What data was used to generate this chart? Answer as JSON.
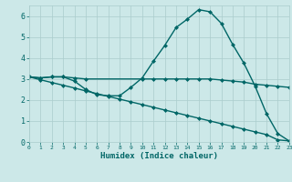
{
  "xlabel": "Humidex (Indice chaleur)",
  "bg_color": "#cce8e8",
  "line_color": "#006666",
  "grid_color": "#aacccc",
  "xlim": [
    0,
    23
  ],
  "ylim": [
    0,
    6.5
  ],
  "xticks": [
    0,
    1,
    2,
    3,
    4,
    5,
    6,
    7,
    8,
    9,
    10,
    11,
    12,
    13,
    14,
    15,
    16,
    17,
    18,
    19,
    20,
    21,
    22,
    23
  ],
  "yticks": [
    0,
    1,
    2,
    3,
    4,
    5,
    6
  ],
  "series1_x": [
    0,
    1,
    2,
    3,
    4,
    5,
    6,
    7,
    8,
    9,
    10,
    11,
    12,
    13,
    14,
    15,
    16,
    17,
    18,
    19,
    20,
    21,
    22,
    23
  ],
  "series1_y": [
    3.1,
    3.05,
    3.1,
    3.1,
    2.9,
    2.5,
    2.25,
    2.2,
    2.2,
    2.6,
    3.05,
    3.85,
    4.6,
    5.45,
    5.85,
    6.3,
    6.2,
    5.65,
    4.65,
    3.75,
    2.65,
    1.35,
    0.4,
    0.05
  ],
  "series2_x": [
    0,
    1,
    2,
    3,
    4,
    5,
    10,
    11,
    12,
    13,
    14,
    15,
    16,
    17,
    18,
    19,
    20,
    21,
    22,
    23
  ],
  "series2_y": [
    3.1,
    3.05,
    3.1,
    3.1,
    3.05,
    3.0,
    3.0,
    3.0,
    3.0,
    3.0,
    3.0,
    3.0,
    3.0,
    2.95,
    2.9,
    2.85,
    2.75,
    2.7,
    2.65,
    2.6
  ],
  "series3_x": [
    0,
    1,
    2,
    3,
    4,
    5,
    6,
    7,
    8,
    9,
    10,
    11,
    12,
    13,
    14,
    15,
    16,
    17,
    18,
    19,
    20,
    21,
    22,
    23
  ],
  "series3_y": [
    3.1,
    2.96,
    2.83,
    2.7,
    2.57,
    2.43,
    2.3,
    2.17,
    2.04,
    1.91,
    1.78,
    1.65,
    1.52,
    1.39,
    1.26,
    1.13,
    1.0,
    0.87,
    0.74,
    0.61,
    0.48,
    0.35,
    0.1,
    0.05
  ],
  "markersize": 2.5,
  "linewidth": 1.0
}
